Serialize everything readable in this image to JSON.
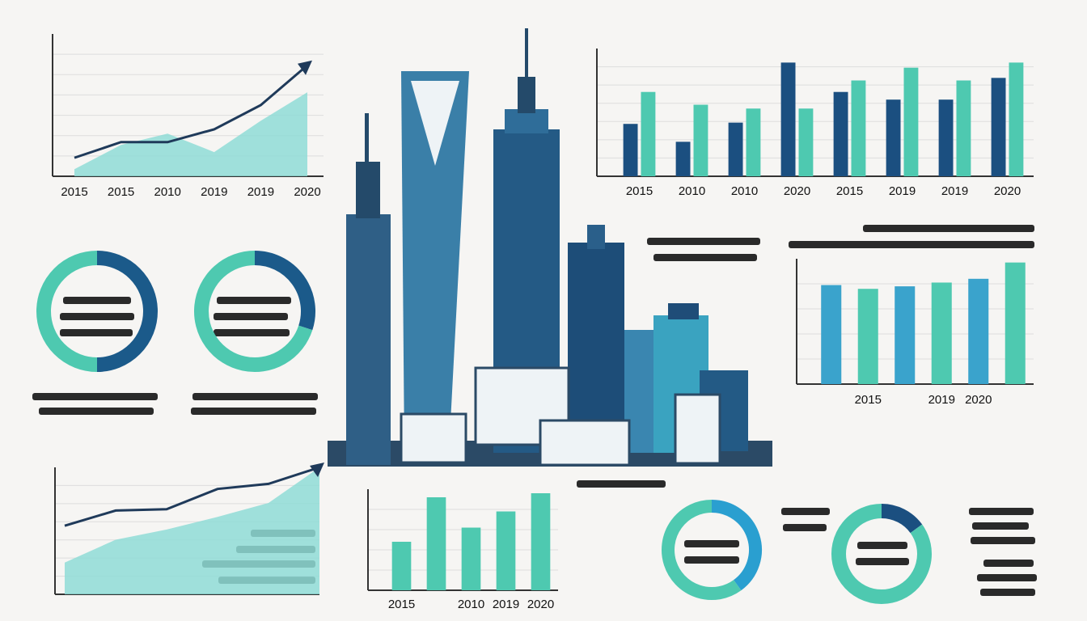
{
  "chart_data": [
    {
      "type": "line",
      "categories": [
        "2015",
        "2015",
        "2010",
        "2019",
        "2019",
        "2020"
      ],
      "ylim": [
        0,
        100
      ],
      "series": [
        {
          "name": null,
          "color": "#1f3a5a",
          "values": [
            13,
            24,
            24,
            33,
            50,
            78
          ]
        },
        {
          "name": null,
          "color": "#8fdcd6",
          "values": [
            5,
            22,
            30,
            17,
            39,
            59
          ],
          "area": true
        }
      ]
    },
    {
      "type": "bar",
      "categories": [
        "2015",
        "2010",
        "2010",
        "2020",
        "2015",
        "2019",
        "2019",
        "2020"
      ],
      "ylim": [
        0,
        100
      ],
      "series": [
        {
          "name": null,
          "color": "#1b4f80",
          "values": [
            41,
            27,
            42,
            89,
            66,
            60,
            60,
            77
          ]
        },
        {
          "name": null,
          "color": "#4ec9b0",
          "values": [
            66,
            56,
            53,
            53,
            75,
            85,
            75,
            89
          ]
        }
      ]
    },
    {
      "type": "bar",
      "categories": [
        null,
        "2015",
        null,
        "2019",
        "2020",
        null
      ],
      "ylim": [
        0,
        100
      ],
      "series": [
        {
          "name": null,
          "color": "#3aa3cc",
          "values": [
            79,
            76,
            78,
            81,
            84,
            97
          ]
        }
      ]
    },
    {
      "type": "bar",
      "categories": [
        "2015",
        null,
        "2010",
        "2019",
        "2020"
      ],
      "ylim": [
        0,
        100
      ],
      "series": [
        {
          "name": null,
          "color": "#4ec9b0",
          "values": [
            48,
            92,
            62,
            78,
            96
          ]
        }
      ]
    },
    {
      "type": "line",
      "ylim": [
        0,
        100
      ],
      "series": [
        {
          "name": null,
          "color": "#1f3a5a",
          "values": [
            54,
            66,
            67,
            83,
            87,
            100
          ]
        },
        {
          "name": null,
          "color": "#8fdcd6",
          "values": [
            25,
            43,
            51,
            61,
            72,
            100
          ],
          "area": true
        }
      ]
    },
    {
      "type": "pie",
      "values": [
        50,
        50
      ],
      "colors": [
        "#1b5a8a",
        "#4ec9b0"
      ]
    },
    {
      "type": "pie",
      "values": [
        30,
        70
      ],
      "colors": [
        "#1b5a8a",
        "#4ec9b0"
      ]
    },
    {
      "type": "pie",
      "values": [
        40,
        60
      ],
      "colors": [
        "#2a9fd0",
        "#4ec9b0"
      ]
    },
    {
      "type": "pie",
      "values": [
        15,
        85
      ],
      "colors": [
        "#1b4f80",
        "#4ec9b0"
      ]
    }
  ]
}
